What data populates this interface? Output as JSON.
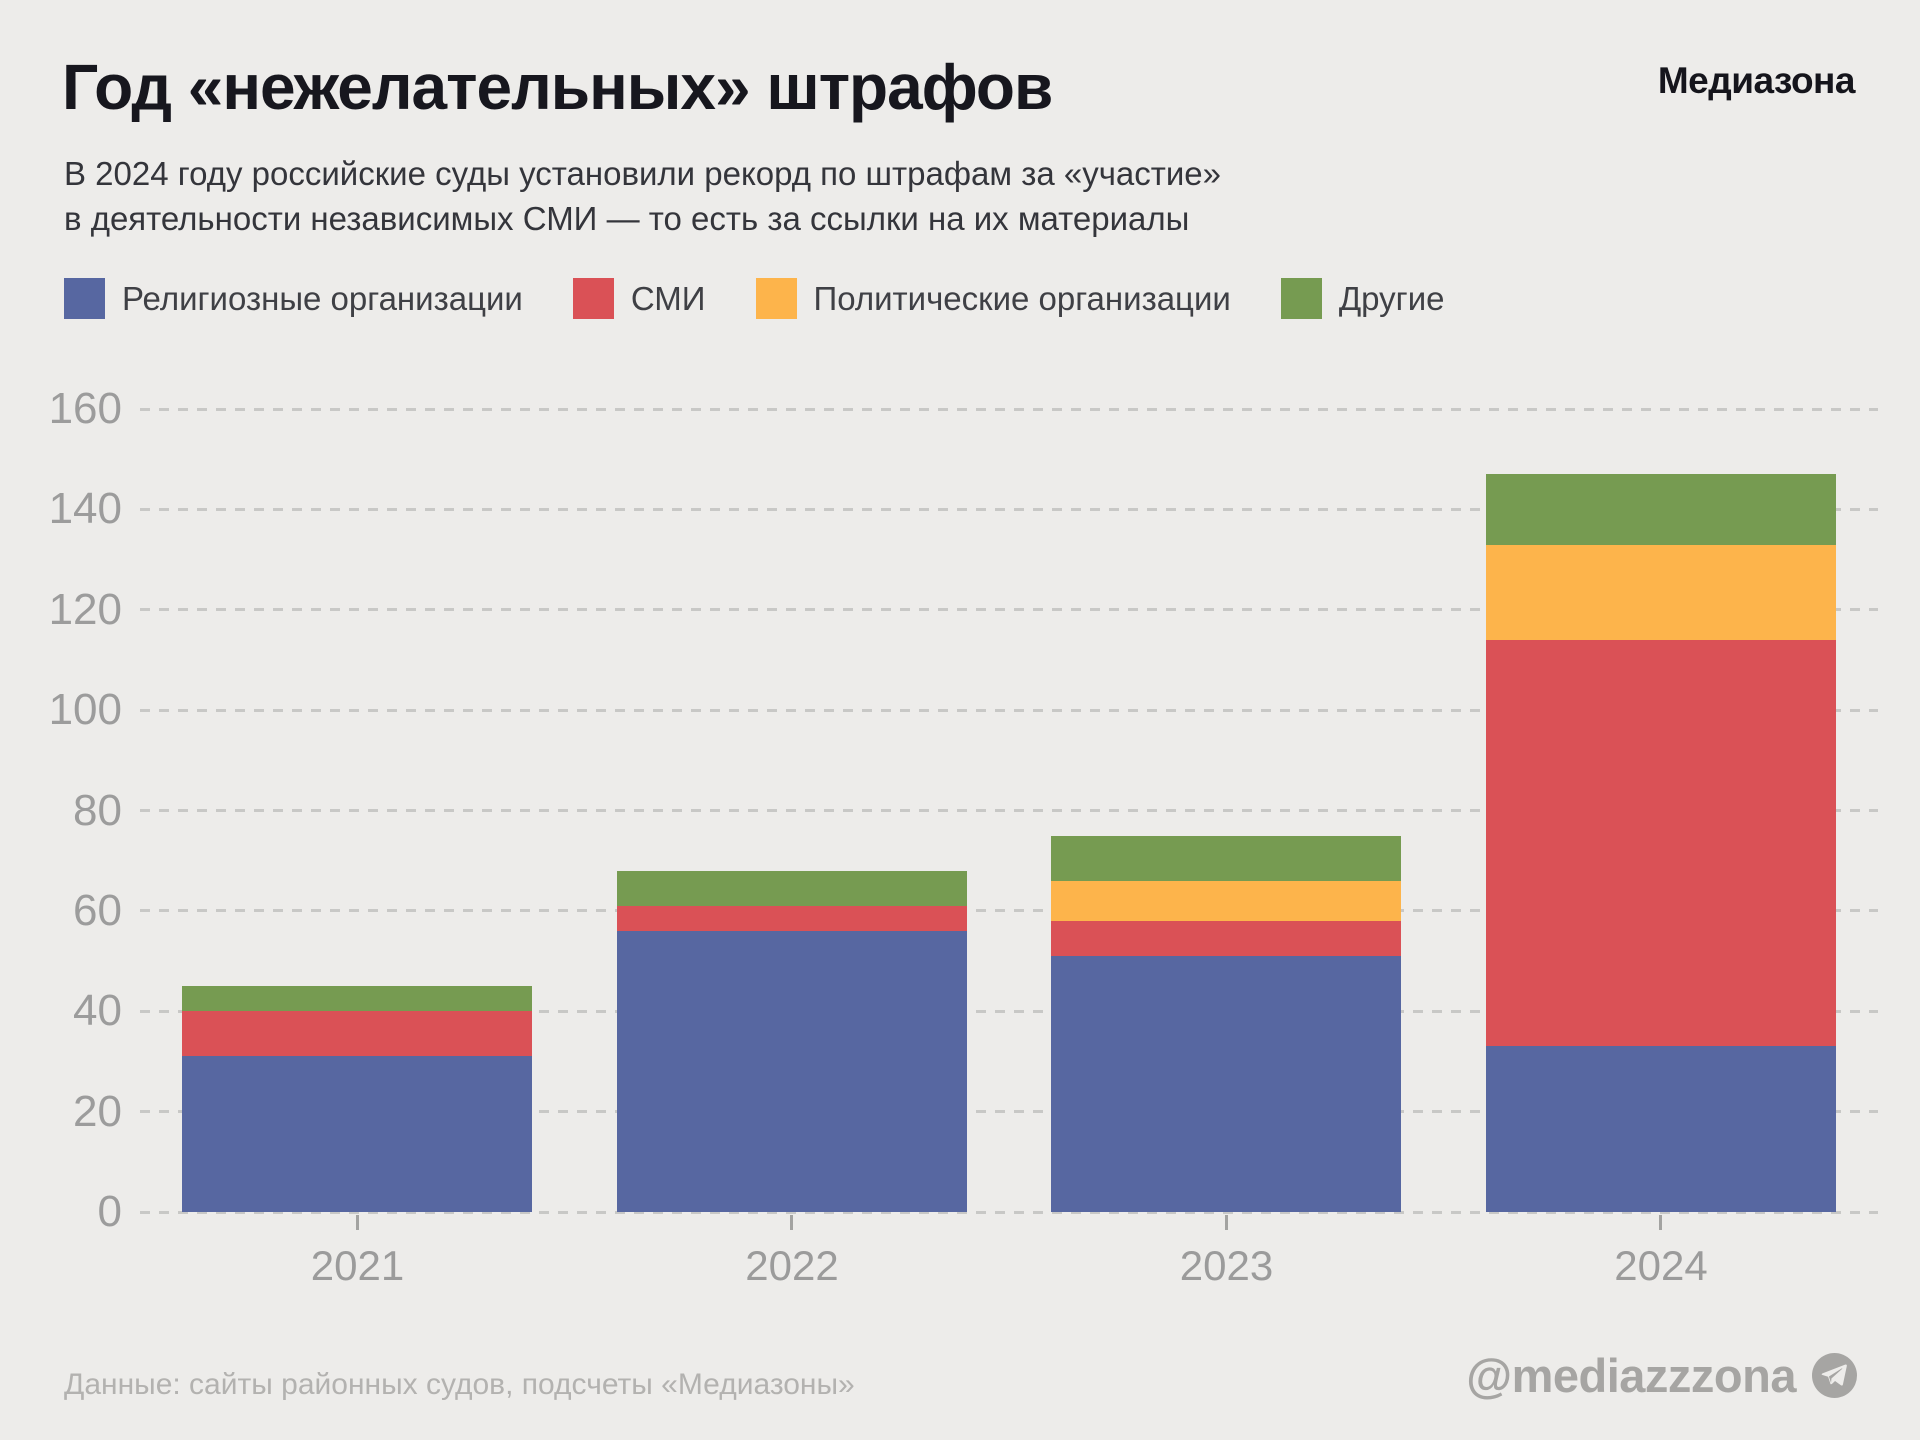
{
  "header": {
    "title": "Год «нежелательных» штрафов",
    "logo": "Медиазона",
    "subtitle_line1": "В 2024 году российские суды установили рекорд по штрафам за «участие»",
    "subtitle_line2": "в деятельности независимых СМИ — то есть за ссылки на их материалы"
  },
  "colors": {
    "background": "#edecea",
    "title": "#17171e",
    "subtitle": "#34353b",
    "legend_text": "#3f4045",
    "axis_label": "#9c9c9c",
    "gridline": "#c8c8c6",
    "footer_text": "#b3b2b0",
    "handle_text": "#a6a5a3",
    "series_blue": "#5767a1",
    "series_red": "#da5156",
    "series_orange": "#fdb44b",
    "series_green": "#769b51"
  },
  "chart_data": {
    "type": "bar",
    "stacked": true,
    "title": "Год «нежелательных» штрафов",
    "categories": [
      "2021",
      "2022",
      "2023",
      "2024"
    ],
    "series": [
      {
        "name": "Религиозные организации",
        "color": "#5767a1",
        "values": [
          31,
          56,
          51,
          33
        ]
      },
      {
        "name": "СМИ",
        "color": "#da5156",
        "values": [
          9,
          5,
          7,
          81
        ]
      },
      {
        "name": "Политические организации",
        "color": "#fdb44b",
        "values": [
          0,
          0,
          8,
          19
        ]
      },
      {
        "name": "Другие",
        "color": "#769b51",
        "values": [
          5,
          7,
          9,
          14
        ]
      }
    ],
    "totals": [
      45,
      68,
      75,
      147
    ],
    "ylim": [
      0,
      160
    ],
    "yticks": [
      0,
      20,
      40,
      60,
      80,
      100,
      120,
      140,
      160
    ],
    "grid": "horizontal-dashed",
    "legend_position": "top"
  },
  "footer": {
    "source": "Данные: сайты районных судов, подсчеты «Медиазоны»",
    "handle": "@mediazzzona"
  }
}
